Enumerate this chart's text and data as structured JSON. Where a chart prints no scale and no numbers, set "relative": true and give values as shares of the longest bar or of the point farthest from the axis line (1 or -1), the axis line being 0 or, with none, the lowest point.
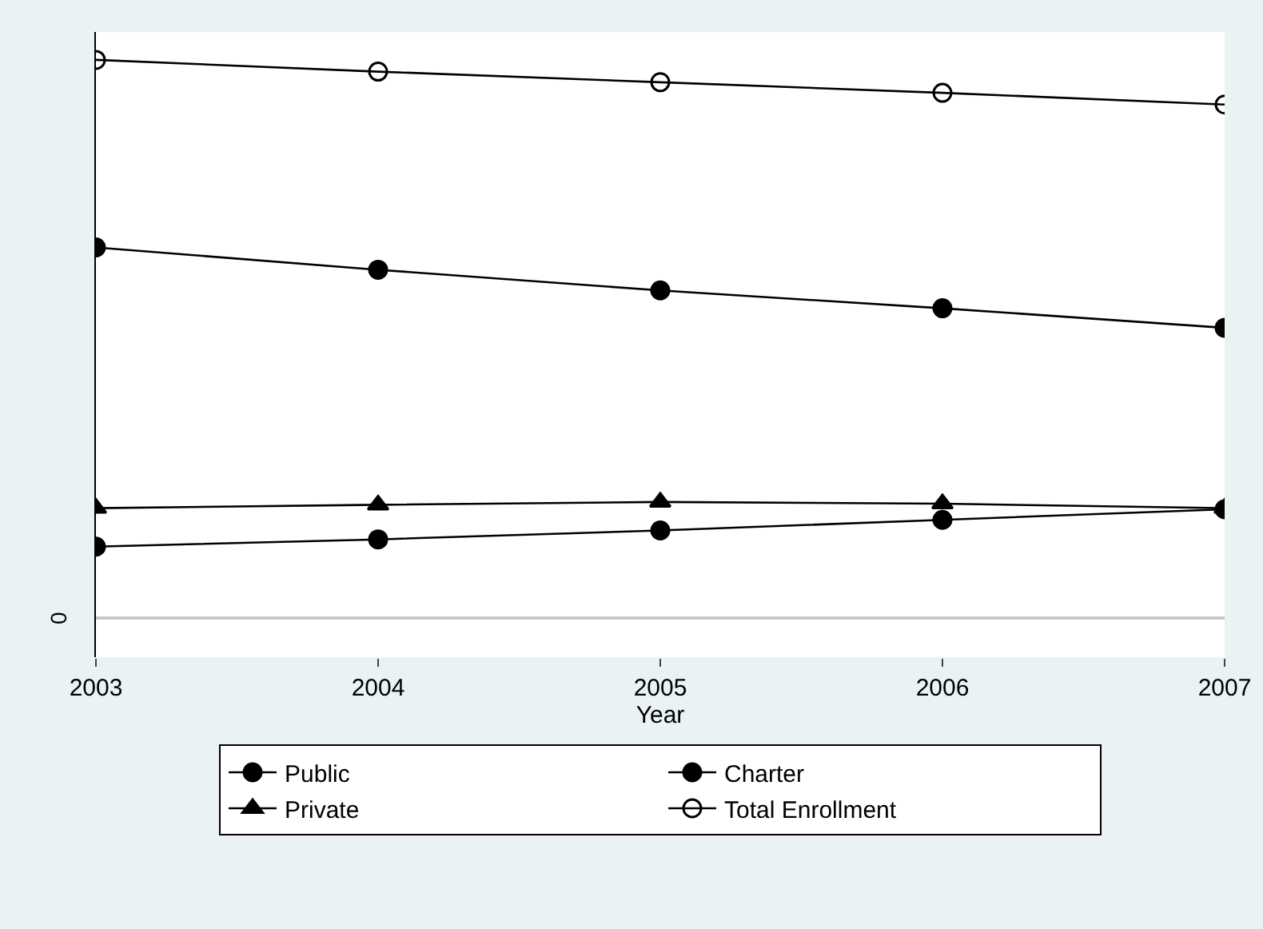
{
  "chart_data": {
    "type": "line",
    "relative": true,
    "xlabel": "Year",
    "x": [
      2003,
      2004,
      2005,
      2006,
      2007
    ],
    "xlim": [
      2003,
      2007
    ],
    "xticks": [
      2003,
      2004,
      2005,
      2006,
      2007
    ],
    "legend": "bottom",
    "line_style": "solid",
    "annotations": [
      "0"
    ],
    "series": [
      {
        "name": "Public",
        "color": "#000000",
        "marker": "circle",
        "values": [
          0.664,
          0.624,
          0.587,
          0.555,
          0.52
        ]
      },
      {
        "name": "Charter",
        "color": "#000000",
        "marker": "circle",
        "values": [
          0.128,
          0.141,
          0.157,
          0.176,
          0.195
        ]
      },
      {
        "name": "Private",
        "color": "#000000",
        "marker": "triangle",
        "values": [
          0.197,
          0.203,
          0.208,
          0.205,
          0.197
        ]
      },
      {
        "name": "Total Enrollment",
        "color": "#000000",
        "marker": "circle-open",
        "values": [
          1,
          0.979,
          0.96,
          0.941,
          0.92
        ]
      }
    ]
  }
}
